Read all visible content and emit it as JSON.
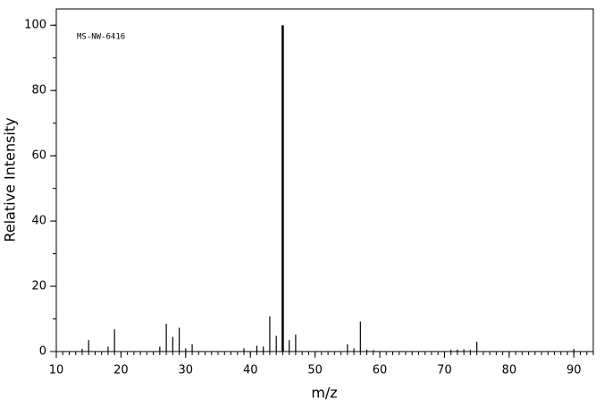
{
  "chart_data": {
    "type": "stem",
    "annotation": "MS-NW-6416",
    "x_label": "m/z",
    "y_label": "Relative Intensity",
    "color": "#000000",
    "x": [
      14,
      15,
      18,
      19,
      26,
      27,
      28,
      29,
      30,
      31,
      39,
      41,
      42,
      43,
      44,
      45,
      46,
      47,
      55,
      56,
      57,
      58,
      59,
      71,
      72,
      73,
      74,
      75,
      90
    ],
    "values": [
      0.8,
      3.5,
      1.5,
      6.8,
      1.5,
      8.5,
      4.5,
      7.3,
      1,
      2.2,
      1,
      1.8,
      1.5,
      10.8,
      4.8,
      100,
      3.5,
      5.2,
      2.2,
      1,
      9.2,
      0.6,
      0.4,
      0.5,
      0.6,
      0.7,
      0.5,
      3,
      0.8
    ],
    "xlim": [
      10,
      93
    ],
    "ylim": [
      0,
      105
    ],
    "xticks": [
      10,
      20,
      30,
      40,
      50,
      60,
      70,
      80,
      90
    ],
    "yticks": [
      0,
      20,
      40,
      60,
      80,
      100
    ]
  }
}
